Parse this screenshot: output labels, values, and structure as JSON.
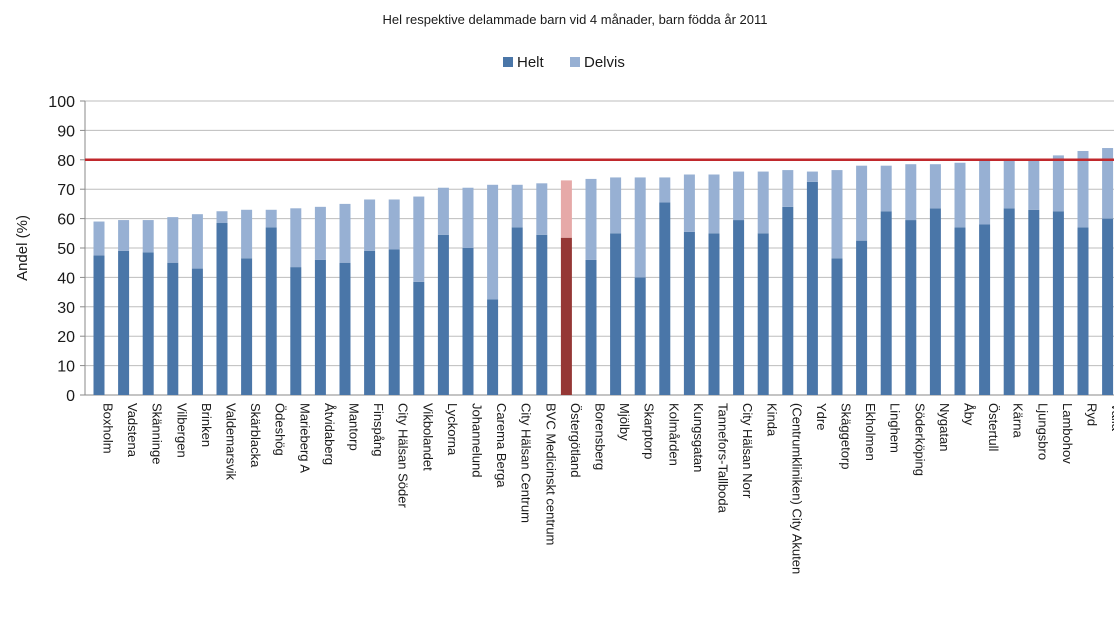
{
  "chart_data": {
    "type": "bar",
    "stacked": true,
    "title": "Hel respektive delammade barn vid 4 månader, barn födda år 2011",
    "ylabel": "Andel (%)",
    "xlabel": "",
    "ylim": [
      0,
      100
    ],
    "yticks": [
      0,
      10,
      20,
      30,
      40,
      50,
      60,
      70,
      80,
      90,
      100
    ],
    "grid": true,
    "legend_position": "top-center",
    "reference_line": {
      "value": 80,
      "color": "#c0282c"
    },
    "highlight": {
      "category": "Östergötland",
      "colors": [
        "#953735",
        "#e6a9a8"
      ]
    },
    "colors": {
      "Helt": "#4a76a8",
      "Delvis": "#97b0d3"
    },
    "categories": [
      "Boxholm",
      "Vadstena",
      "Skänninge",
      "Vilbergen",
      "Brinken",
      "Valdemarsvik",
      "Skärblacka",
      "Ödeshög",
      "Marieberg A",
      "Åtvidaberg",
      "Mantorp",
      "Finspång",
      "City Hälsan Söder",
      "Vikbolandet",
      "Lyckorna",
      "Johannelund",
      "Carema Berga",
      "City Hälsan Centrum",
      "BVC Medicinskt centrum",
      "Östergötland",
      "Borensberg",
      "Mjölby",
      "Skarptorp",
      "Kolmården",
      "Kungsgatan",
      "Tannefors-Tallboda",
      "City Hälsan Norr",
      "Kinda",
      "(Centrumkliniken) City Akuten",
      "Ydre",
      "Skäggetorp",
      "Ekholmen",
      "Linghem",
      "Söderköping",
      "Nygatan",
      "Åby",
      "Östertull",
      "Kärna",
      "Ljungsbro",
      "Lambohov",
      "Ryd",
      "Vårdcentralen Valla"
    ],
    "category_labels": [
      "Boxholm",
      "Vadstena",
      "Skänninge",
      "Vilbergen",
      "Brinken",
      "Valdemarsvik",
      "Skärblacka",
      "Ödeshög",
      "Marieberg A",
      "Åtvidaberg",
      "Mantorp",
      "Finspång",
      "City Hälsan Söder",
      "Vikbolandet",
      "Lyckorna",
      "Johannelund",
      "Carema Berga",
      "City Hälsan Centrum",
      "BVC Medicinskt centrum",
      "Östergötland",
      "Borensberg",
      "Mjölby",
      "Skarptorp",
      "Kolmården",
      "Kungsgatan",
      "Tannefors-Tallboda",
      "City Hälsan Norr",
      "Kinda",
      "(Centrumkliniken) City Akuten",
      "Ydre",
      "Skäggetorp",
      "Ekholmen",
      "Linghem",
      "Söderköping",
      "Nygatan",
      "Åby",
      "Östertull",
      "Kärna",
      "Ljungsbro",
      "Lambohov",
      "Ryd",
      "Valla"
    ],
    "series": [
      {
        "name": "Helt",
        "values": [
          47.5,
          49,
          48.5,
          45,
          43,
          58.5,
          46.5,
          57,
          43.5,
          46,
          45,
          49,
          49.5,
          38.5,
          54.5,
          50,
          32.5,
          57,
          54.5,
          53.5,
          46,
          55,
          40,
          65.5,
          55.5,
          55,
          59.5,
          55,
          64,
          72.5,
          46.5,
          52.5,
          62.5,
          59.5,
          63.5,
          57,
          58,
          63.5,
          63,
          62.5,
          57,
          60
        ]
      },
      {
        "name": "Delvis",
        "values": [
          11.5,
          10.5,
          11,
          15.5,
          18.5,
          4,
          16.5,
          6,
          20,
          18,
          20,
          17.5,
          17,
          29,
          16,
          20.5,
          39,
          14.5,
          17.5,
          19.5,
          27.5,
          19,
          34,
          8.5,
          19.5,
          20,
          16.5,
          21,
          12.5,
          3.5,
          30,
          25.5,
          15.5,
          19,
          15,
          22,
          22,
          16.5,
          17,
          19,
          26,
          24
        ]
      }
    ]
  }
}
